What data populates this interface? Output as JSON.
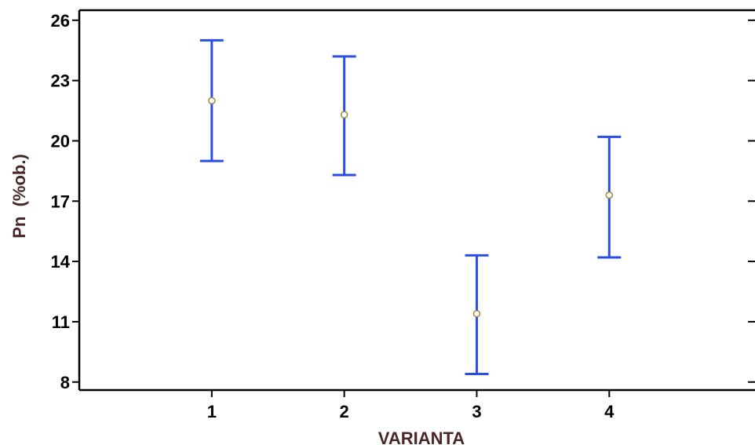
{
  "chart_data": {
    "type": "scatter",
    "subtype": "means-with-error-bars",
    "xlabel": "VARIANTA",
    "ylabel": "Pn  (%ob.)",
    "categories": [
      "1",
      "2",
      "3",
      "4"
    ],
    "y_ticks": [
      "8",
      "11",
      "14",
      "17",
      "20",
      "23",
      "26"
    ],
    "ylim": [
      7.6,
      26.5
    ],
    "xlim": [
      0.0,
      5.1
    ],
    "points": [
      {
        "x": 1,
        "mean": 22.0,
        "lower": 19.0,
        "upper": 25.0
      },
      {
        "x": 2,
        "mean": 21.3,
        "lower": 18.3,
        "upper": 24.2
      },
      {
        "x": 3,
        "mean": 11.4,
        "lower": 8.4,
        "upper": 14.3
      },
      {
        "x": 4,
        "mean": 17.3,
        "lower": 14.2,
        "upper": 20.2
      }
    ],
    "grid": false,
    "legend": "none",
    "colors": {
      "error_bar": "#2a4fe8",
      "mean_marker": "#9a8a3a",
      "axis": "#000000",
      "axis_title": "#4a2626"
    }
  }
}
